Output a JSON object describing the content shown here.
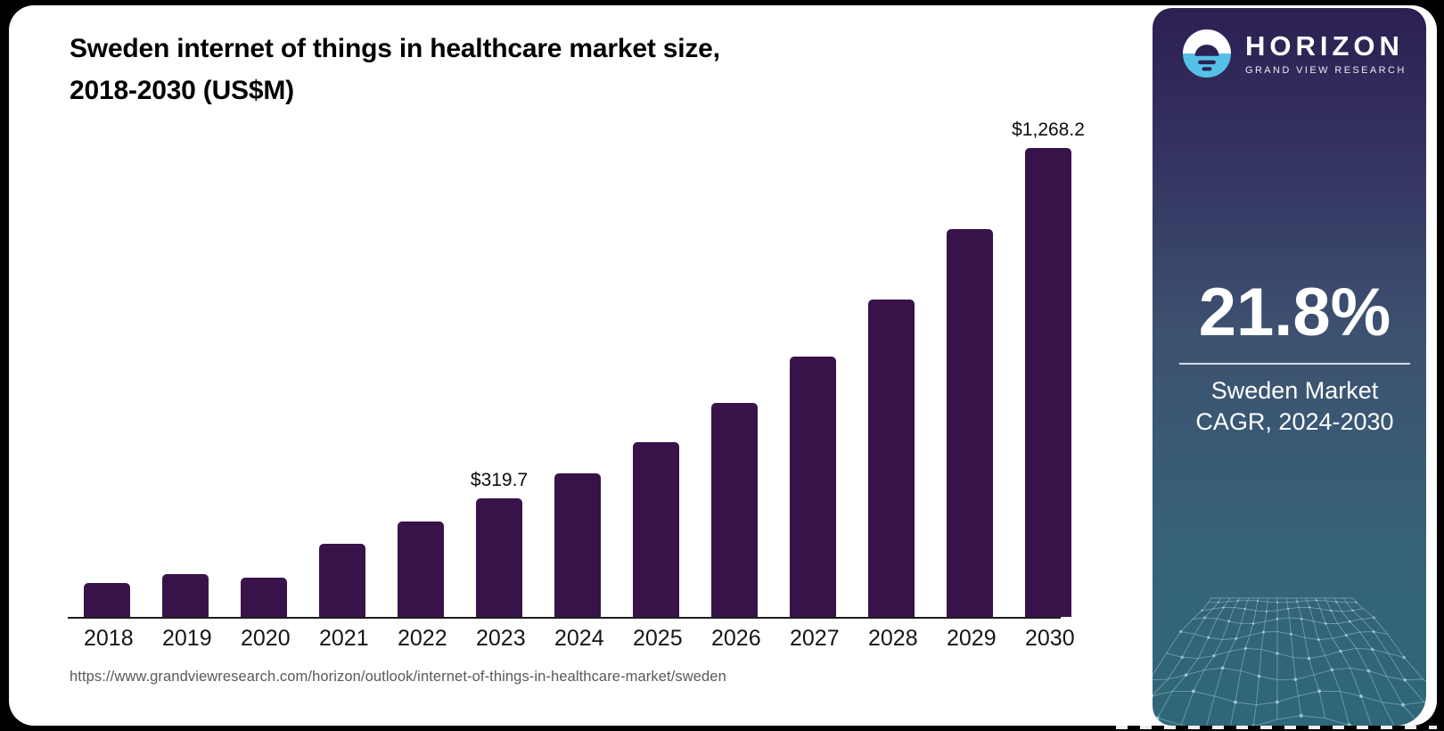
{
  "page": {
    "title_line1": "Sweden internet of things in healthcare market size,",
    "title_line2": "2018-2030 (US$M)",
    "source_url": "https://www.grandviewresearch.com/horizon/outlook/internet-of-things-in-healthcare-market/sweden"
  },
  "chart_data": {
    "type": "bar",
    "title": "Sweden internet of things in healthcare market size, 2018-2030 (US$M)",
    "unit": "US$M",
    "categories": [
      "2018",
      "2019",
      "2020",
      "2021",
      "2022",
      "2023",
      "2024",
      "2025",
      "2026",
      "2027",
      "2028",
      "2029",
      "2030"
    ],
    "values": [
      91.2,
      116.9,
      107.2,
      198.4,
      258.2,
      319.7,
      387.2,
      471.9,
      578.4,
      704.2,
      859.1,
      1047.9,
      1268.2
    ],
    "point_labels": [
      "",
      "",
      "",
      "",
      "",
      "$319.7",
      "",
      "",
      "",
      "",
      "",
      "",
      "$1,268.2"
    ],
    "bar_color": "#38134a",
    "axis_color": "#1c1c1c",
    "ylim": [
      0,
      1300
    ],
    "grid": false,
    "legend": false,
    "value_axis_shown": false
  },
  "sidebar": {
    "brand": {
      "icon": "horizon-sun-circle-icon",
      "name": "HORIZON",
      "subtitle": "GRAND VIEW RESEARCH",
      "icon_blue": "#56c1e8",
      "icon_dark": "#2d2150"
    },
    "stat": {
      "value": "21.8%",
      "line1": "Sweden Market",
      "line2": "CAGR, 2024-2030"
    },
    "colors": {
      "gradient_top": "#2c2051",
      "gradient_mid": "#3d5170",
      "gradient_bottom": "#2e6878"
    },
    "decoration": "wireframe-terrain-graphic"
  }
}
